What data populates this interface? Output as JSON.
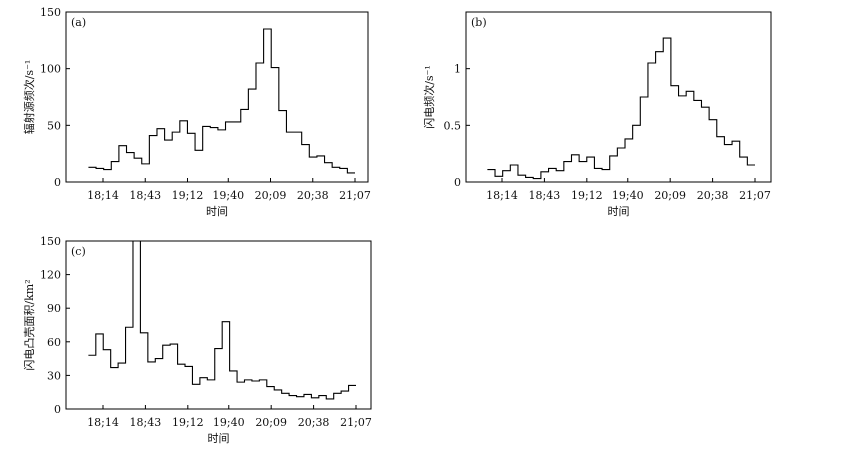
{
  "chart_data": [
    {
      "type": "line",
      "panel_label": "(a)",
      "xlabel": "时间",
      "ylabel": "辐射源频次/s⁻¹",
      "ylim": [
        0,
        150
      ],
      "yticks": [
        0,
        50,
        100,
        150
      ],
      "xticks": [
        "18:14",
        "18:43",
        "19:12",
        "19:40",
        "20:09",
        "20:38",
        "21:07"
      ],
      "tick_label_display": [
        "18;14",
        "18;43",
        "19;12",
        "19;40",
        "20;09",
        "20;38",
        "21;07"
      ],
      "x_start": "18:04",
      "x_end": "21:07",
      "step": "stepped",
      "values": [
        13,
        12,
        11,
        18,
        32,
        26,
        21,
        16,
        41,
        47,
        37,
        44,
        54,
        43,
        28,
        49,
        48,
        46,
        53,
        53,
        64,
        82,
        105,
        135,
        101,
        63,
        44,
        44,
        33,
        22,
        23,
        17,
        13,
        12,
        8
      ]
    },
    {
      "type": "line",
      "panel_label": "(b)",
      "xlabel": "时间",
      "ylabel": "闪电频次/s⁻¹",
      "ylim": [
        0,
        1.5
      ],
      "yticks": [
        0,
        0.5,
        1
      ],
      "xticks": [
        "18:14",
        "18:43",
        "19:12",
        "19:40",
        "20:09",
        "20:38",
        "21:07"
      ],
      "tick_label_display": [
        "18;14",
        "18;43",
        "19;12",
        "19;40",
        "20;09",
        "20;38",
        "21;07"
      ],
      "x_start": "18:04",
      "x_end": "21:07",
      "step": "stepped",
      "values": [
        0.11,
        0.05,
        0.1,
        0.15,
        0.06,
        0.04,
        0.03,
        0.09,
        0.12,
        0.1,
        0.18,
        0.24,
        0.18,
        0.22,
        0.12,
        0.11,
        0.23,
        0.3,
        0.38,
        0.5,
        0.75,
        1.05,
        1.15,
        1.27,
        0.85,
        0.76,
        0.8,
        0.72,
        0.66,
        0.55,
        0.4,
        0.33,
        0.36,
        0.22,
        0.15
      ]
    },
    {
      "type": "line",
      "panel_label": "(c)",
      "xlabel": "时间",
      "ylabel": "闪电凸壳面积/km²",
      "ylim": [
        0,
        150
      ],
      "yticks": [
        0,
        30,
        60,
        90,
        120,
        150
      ],
      "xticks": [
        "18:14",
        "18:43",
        "19:12",
        "19:40",
        "20:09",
        "20:38",
        "21:07"
      ],
      "tick_label_display": [
        "18;14",
        "18;43",
        "19;12",
        "19;40",
        "20;09",
        "20;38",
        "21;07"
      ],
      "x_start": "18:04",
      "x_end": "21:07",
      "step": "stepped",
      "values": [
        48,
        67,
        53,
        37,
        41,
        73,
        150,
        68,
        42,
        45,
        57,
        58,
        40,
        38,
        22,
        28,
        26,
        54,
        78,
        34,
        24,
        26,
        25,
        26,
        20,
        17,
        14,
        12,
        11,
        13,
        10,
        12,
        9,
        14,
        16,
        21
      ]
    }
  ]
}
